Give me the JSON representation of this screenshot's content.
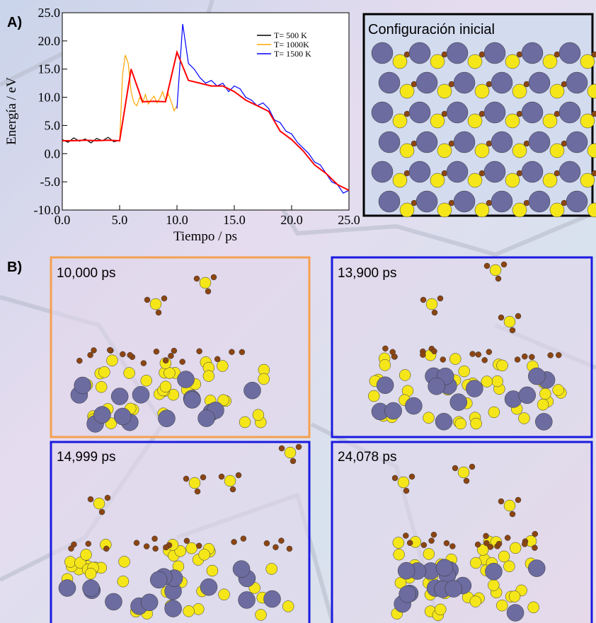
{
  "chart_data": {
    "type": "line",
    "x_label": "Tiempo  /  ps",
    "y_label": "Energía / eV",
    "xlim": [
      0,
      25
    ],
    "ylim": [
      -10,
      25
    ],
    "xticks": [
      {
        "value": 0,
        "label": "0.0"
      },
      {
        "value": 5,
        "label": "5.0"
      },
      {
        "value": 10,
        "label": "10.0"
      },
      {
        "value": 15,
        "label": "15.0"
      },
      {
        "value": 20,
        "label": "20.0"
      },
      {
        "value": 25,
        "label": "25.0"
      }
    ],
    "yticks": [
      {
        "value": -10,
        "label": "-10.0"
      },
      {
        "value": -5,
        "label": "-5.0"
      },
      {
        "value": 0,
        "label": "0.0"
      },
      {
        "value": 5,
        "label": "5.0"
      },
      {
        "value": 10,
        "label": "10.0"
      },
      {
        "value": 15,
        "label": "15.0"
      },
      {
        "value": 20,
        "label": "20.0"
      },
      {
        "value": 25,
        "label": "25.0"
      }
    ],
    "legend": "upper right",
    "series": [
      {
        "name": "T= 500 K",
        "color": "#000000",
        "x": [
          0,
          0.5,
          1,
          1.5,
          2,
          2.5,
          3,
          3.5,
          4,
          4.5,
          5
        ],
        "values": [
          2.5,
          2.0,
          2.8,
          2.2,
          2.6,
          1.9,
          2.7,
          2.3,
          2.9,
          2.1,
          2.4
        ]
      },
      {
        "name": "T= 1000K",
        "color": "#ffa500",
        "x": [
          5,
          5.25,
          5.5,
          5.75,
          6,
          6.25,
          6.5,
          6.75,
          7,
          7.25,
          7.5,
          7.75,
          8,
          8.25,
          8.5,
          8.75,
          9,
          9.25,
          9.5,
          9.75,
          10
        ],
        "values": [
          2.0,
          14,
          17.5,
          16,
          11,
          9,
          8.5,
          10,
          9,
          10.5,
          8.8,
          9.6,
          10.2,
          9,
          9.8,
          11,
          9.4,
          10.6,
          9.2,
          7.6,
          8.5
        ]
      },
      {
        "name": "T= 1500 K",
        "color": "#0000ff",
        "x": [
          10,
          10.5,
          11,
          11.5,
          12,
          12.5,
          13,
          13.5,
          14,
          14.5,
          15,
          15.5,
          16,
          16.5,
          17,
          17.5,
          18,
          18.5,
          19,
          19.5,
          20,
          20.5,
          21,
          21.5,
          22,
          22.5,
          23,
          23.5,
          24,
          24.5,
          25
        ],
        "values": [
          8,
          23,
          16,
          15,
          13.5,
          12.5,
          13,
          12,
          12.5,
          11,
          12,
          11.5,
          10,
          9.5,
          8.5,
          9,
          8,
          6,
          5.5,
          4,
          3.5,
          2,
          1,
          0,
          -1.5,
          -2,
          -3.5,
          -5,
          -5.5,
          -7,
          -6.5
        ]
      },
      {
        "color": "#ff0000",
        "x": [
          0,
          1,
          2,
          3,
          4,
          5,
          6,
          7,
          8,
          9,
          10,
          11,
          12,
          13,
          14,
          15,
          16,
          17,
          18,
          19,
          20,
          21,
          22,
          23,
          24,
          25
        ],
        "values": [
          2.3,
          2.3,
          2.4,
          2.3,
          2.4,
          2.3,
          15,
          9.2,
          9.3,
          9.2,
          18,
          13,
          12.5,
          12,
          12,
          11,
          9.5,
          8.5,
          7.5,
          4,
          2.5,
          0.5,
          -2,
          -3.5,
          -5.5,
          -6.5
        ]
      }
    ]
  },
  "panel_a_label": "A)",
  "panel_b_label": "B)",
  "initial_config": "Configuración inicial",
  "snapshots": [
    "10,000 ps",
    "13,900 ps",
    "14,999 ps",
    "24,078 ps"
  ]
}
